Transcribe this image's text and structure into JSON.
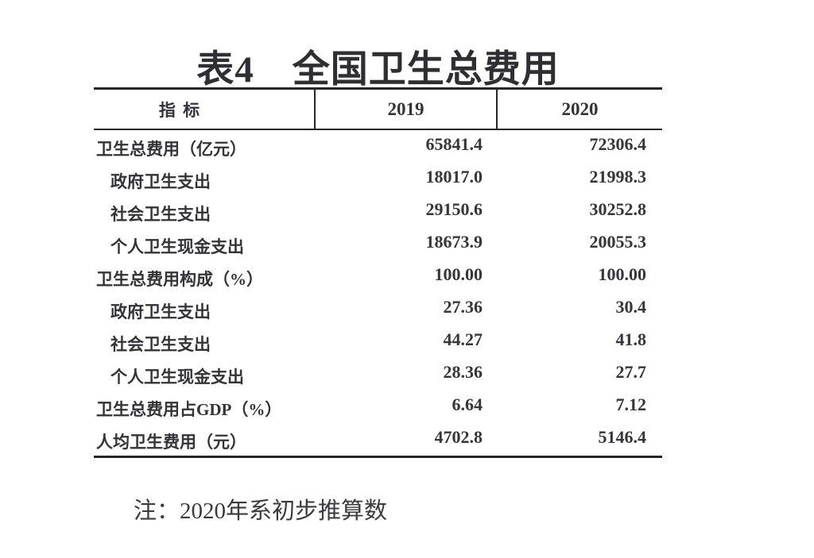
{
  "title": "表4　全国卫生总费用",
  "table": {
    "columns": [
      "指 标",
      "2019",
      "2020"
    ],
    "rows": [
      {
        "label": "卫生总费用（亿元）",
        "indent": false,
        "v2019": "65841.4",
        "v2020": "72306.4"
      },
      {
        "label": "政府卫生支出",
        "indent": true,
        "v2019": "18017.0",
        "v2020": "21998.3"
      },
      {
        "label": "社会卫生支出",
        "indent": true,
        "v2019": "29150.6",
        "v2020": "30252.8"
      },
      {
        "label": "个人卫生现金支出",
        "indent": true,
        "v2019": "18673.9",
        "v2020": "20055.3"
      },
      {
        "label": "卫生总费用构成（%）",
        "indent": false,
        "v2019": "100.00",
        "v2020": "100.00"
      },
      {
        "label": "政府卫生支出",
        "indent": true,
        "v2019": "27.36",
        "v2020": "30.4"
      },
      {
        "label": "社会卫生支出",
        "indent": true,
        "v2019": "44.27",
        "v2020": "41.8"
      },
      {
        "label": "个人卫生现金支出",
        "indent": true,
        "v2019": "28.36",
        "v2020": "27.7"
      },
      {
        "label": "卫生总费用占GDP（%）",
        "indent": false,
        "v2019": "6.64",
        "v2020": "7.12"
      },
      {
        "label": "人均卫生费用（元）",
        "indent": false,
        "v2019": "4702.8",
        "v2020": "5146.4"
      }
    ]
  },
  "note": "注：2020年系初步推算数",
  "colors": {
    "text": "#333338",
    "border": "#26262a",
    "background": "#ffffff"
  }
}
